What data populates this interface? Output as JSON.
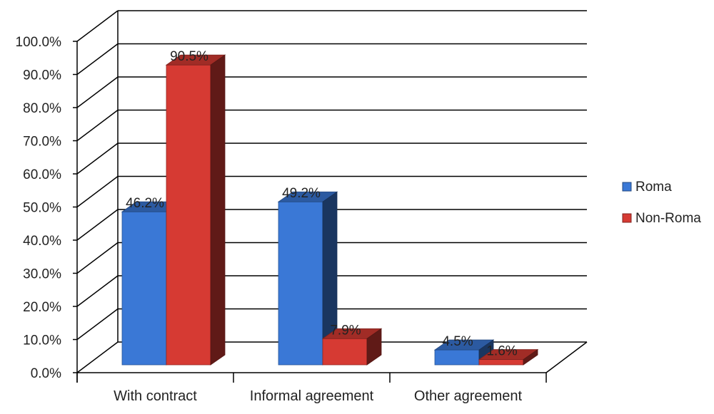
{
  "chart_data": {
    "type": "bar",
    "style": "3d-clustered-column",
    "categories": [
      "With contract",
      "Informal agreement",
      "Other agreement"
    ],
    "series": [
      {
        "name": "Roma",
        "values": [
          46.2,
          49.2,
          4.5
        ],
        "value_labels": [
          "46.2%",
          "49.2%",
          "4.5%"
        ],
        "color": "#3a78d6"
      },
      {
        "name": "Non-Roma",
        "values": [
          90.5,
          7.9,
          1.6
        ],
        "value_labels": [
          "90.5%",
          "7.9%",
          "1.6%"
        ],
        "color": "#d63a33"
      }
    ],
    "ylim": [
      0,
      100
    ],
    "yticks": [
      "0.0%",
      "10.0%",
      "20.0%",
      "30.0%",
      "40.0%",
      "50.0%",
      "60.0%",
      "70.0%",
      "80.0%",
      "90.0%",
      "100.0%"
    ],
    "grid": true,
    "legend": "right",
    "title": "",
    "xlabel": "",
    "ylabel": ""
  }
}
